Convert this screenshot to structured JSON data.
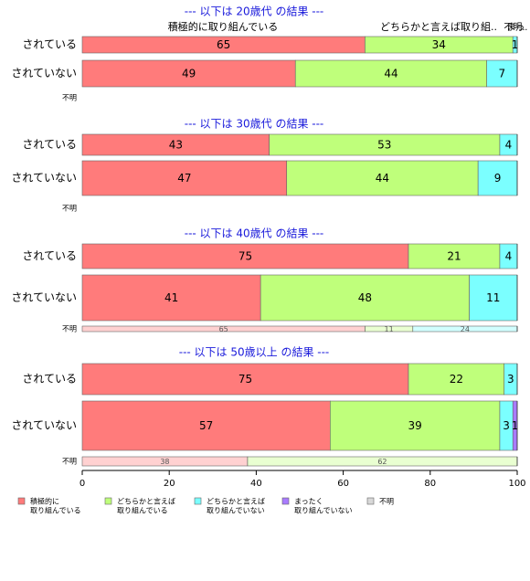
{
  "chart_data": {
    "type": "bar",
    "orientation": "horizontal",
    "stacked": true,
    "normalized": true,
    "xlim": [
      0,
      100
    ],
    "x_ticks": [
      "0",
      "20",
      "40",
      "60",
      "80",
      "100"
    ],
    "colors": {
      "積極的に取り組んでいる": "#ff7b7b",
      "どちらかと言えば取り組んでいる": "#bfff7b",
      "どちらかと言えば取り組んでいない": "#7bffff",
      "まったく取り組んでいない": "#a97bff",
      "不明": "#d8d8d8",
      "title": "#1a1adb"
    },
    "legend": {
      "position": "bottom",
      "items": [
        {
          "key": "積極的に取り組んでいる",
          "lines": [
            "積極的に",
            "取り組んでいる"
          ]
        },
        {
          "key": "どちらかと言えば取り組んでいる",
          "lines": [
            "どちらかと言えば",
            "取り組んでいる"
          ]
        },
        {
          "key": "どちらかと言えば取り組んでいない",
          "lines": [
            "どちらかと言えば",
            "取り組んでいない"
          ]
        },
        {
          "key": "まったく取り組んでいない",
          "lines": [
            "まったく",
            "取り組んでいない"
          ]
        },
        {
          "key": "不明",
          "lines": [
            "不明"
          ]
        }
      ]
    },
    "top_annotations": [
      "積極的に取り組んでいる",
      "どちらかと言えば取り組..",
      "不明.",
      "まっ."
    ],
    "panels": [
      {
        "title": "--- 以下は 20歳代 の結果 ---",
        "rows": [
          {
            "label": "されている",
            "segments": [
              {
                "key": "積極的に取り組んでいる",
                "value": 65,
                "label": "65"
              },
              {
                "key": "どちらかと言えば取り組んでいる",
                "value": 34,
                "label": "34"
              },
              {
                "key": "どちらかと言えば取り組んでいない",
                "value": 1,
                "label": "1"
              }
            ]
          },
          {
            "label": "されていない",
            "segments": [
              {
                "key": "積極的に取り組んでいる",
                "value": 49,
                "label": "49"
              },
              {
                "key": "どちらかと言えば取り組んでいる",
                "value": 44,
                "label": "44"
              },
              {
                "key": "どちらかと言えば取り組んでいない",
                "value": 7,
                "label": "7"
              }
            ]
          },
          {
            "label": "不明",
            "segments": []
          }
        ]
      },
      {
        "title": "--- 以下は 30歳代 の結果 ---",
        "rows": [
          {
            "label": "されている",
            "segments": [
              {
                "key": "積極的に取り組んでいる",
                "value": 43,
                "label": "43"
              },
              {
                "key": "どちらかと言えば取り組んでいる",
                "value": 53,
                "label": "53"
              },
              {
                "key": "どちらかと言えば取り組んでいない",
                "value": 4,
                "label": "4"
              }
            ]
          },
          {
            "label": "されていない",
            "segments": [
              {
                "key": "積極的に取り組んでいる",
                "value": 47,
                "label": "47"
              },
              {
                "key": "どちらかと言えば取り組んでいる",
                "value": 44,
                "label": "44"
              },
              {
                "key": "どちらかと言えば取り組んでいない",
                "value": 9,
                "label": "9"
              }
            ]
          },
          {
            "label": "不明",
            "segments": []
          }
        ]
      },
      {
        "title": "--- 以下は 40歳代 の結果 ---",
        "rows": [
          {
            "label": "されている",
            "segments": [
              {
                "key": "積極的に取り組んでいる",
                "value": 75,
                "label": "75"
              },
              {
                "key": "どちらかと言えば取り組んでいる",
                "value": 21,
                "label": "21"
              },
              {
                "key": "どちらかと言えば取り組んでいない",
                "value": 4,
                "label": "4"
              }
            ]
          },
          {
            "label": "されていない",
            "segments": [
              {
                "key": "積極的に取り組んでいる",
                "value": 41,
                "label": "41"
              },
              {
                "key": "どちらかと言えば取り組んでいる",
                "value": 48,
                "label": "48"
              },
              {
                "key": "どちらかと言えば取り組んでいない",
                "value": 11,
                "label": "11"
              }
            ]
          },
          {
            "label": "不明",
            "segments": [
              {
                "key": "積極的に取り組んでいる",
                "value": 65,
                "label": "65"
              },
              {
                "key": "どちらかと言えば取り組んでいる",
                "value": 11,
                "label": "11"
              },
              {
                "key": "どちらかと言えば取り組んでいない",
                "value": 24,
                "label": "24"
              }
            ]
          }
        ]
      },
      {
        "title": "--- 以下は 50歳以上 の結果 ---",
        "rows": [
          {
            "label": "されている",
            "segments": [
              {
                "key": "積極的に取り組んでいる",
                "value": 75,
                "label": "75"
              },
              {
                "key": "どちらかと言えば取り組んでいる",
                "value": 22,
                "label": "22"
              },
              {
                "key": "どちらかと言えば取り組んでいない",
                "value": 3,
                "label": "3"
              }
            ]
          },
          {
            "label": "されていない",
            "segments": [
              {
                "key": "積極的に取り組んでいる",
                "value": 57,
                "label": "57"
              },
              {
                "key": "どちらかと言えば取り組んでいる",
                "value": 39,
                "label": "39"
              },
              {
                "key": "どちらかと言えば取り組んでいない",
                "value": 3,
                "label": "3"
              },
              {
                "key": "まったく取り組んでいない",
                "value": 1,
                "label": "1"
              }
            ]
          },
          {
            "label": "不明",
            "segments": [
              {
                "key": "積極的に取り組んでいる",
                "value": 38,
                "label": "38"
              },
              {
                "key": "どちらかと言えば取り組んでいる",
                "value": 62,
                "label": "62"
              }
            ]
          }
        ]
      }
    ]
  }
}
